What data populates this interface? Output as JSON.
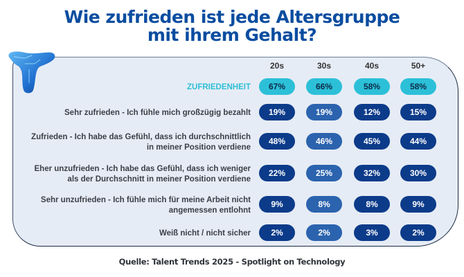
{
  "title_line1": "Wie zufrieden ist jede Altersgruppe",
  "title_line2": "mit ihrem Gehalt?",
  "source": "Quelle: Talent Trends 2025 - Spotlight on Technology",
  "colors": {
    "title": "#0a4da0",
    "highlight": "#2cc0d8",
    "dark_pill": "#0c3b8a",
    "mid_pill": "#2b63ae"
  },
  "chart_data": {
    "type": "table",
    "title": "Wie zufrieden ist jede Altersgruppe mit ihrem Gehalt?",
    "columns": [
      "20s",
      "30s",
      "40s",
      "50+"
    ],
    "rows": [
      {
        "label": "ZUFRIEDENHEIT",
        "values": [
          "67%",
          "66%",
          "58%",
          "58%"
        ]
      },
      {
        "label": "Sehr zufrieden - Ich fühle mich großzügig bezahlt",
        "values": [
          "19%",
          "19%",
          "12%",
          "15%"
        ]
      },
      {
        "label": "Zufrieden - Ich habe das Gefühl, dass ich durchschnittlich in meiner Position verdiene",
        "values": [
          "48%",
          "46%",
          "45%",
          "44%"
        ]
      },
      {
        "label": "Eher unzufrieden - Ich habe das Gefühl, dass ich weniger als der Durchschnitt in meiner Position verdiene",
        "values": [
          "22%",
          "25%",
          "32%",
          "30%"
        ]
      },
      {
        "label": "Sehr unzufrieden - Ich fühle mich für meine Arbeit nicht angemessen entlohnt",
        "values": [
          "9%",
          "8%",
          "8%",
          "9%"
        ]
      },
      {
        "label": "Weiß nicht / nicht sicher",
        "values": [
          "2%",
          "2%",
          "3%",
          "2%"
        ]
      }
    ]
  }
}
